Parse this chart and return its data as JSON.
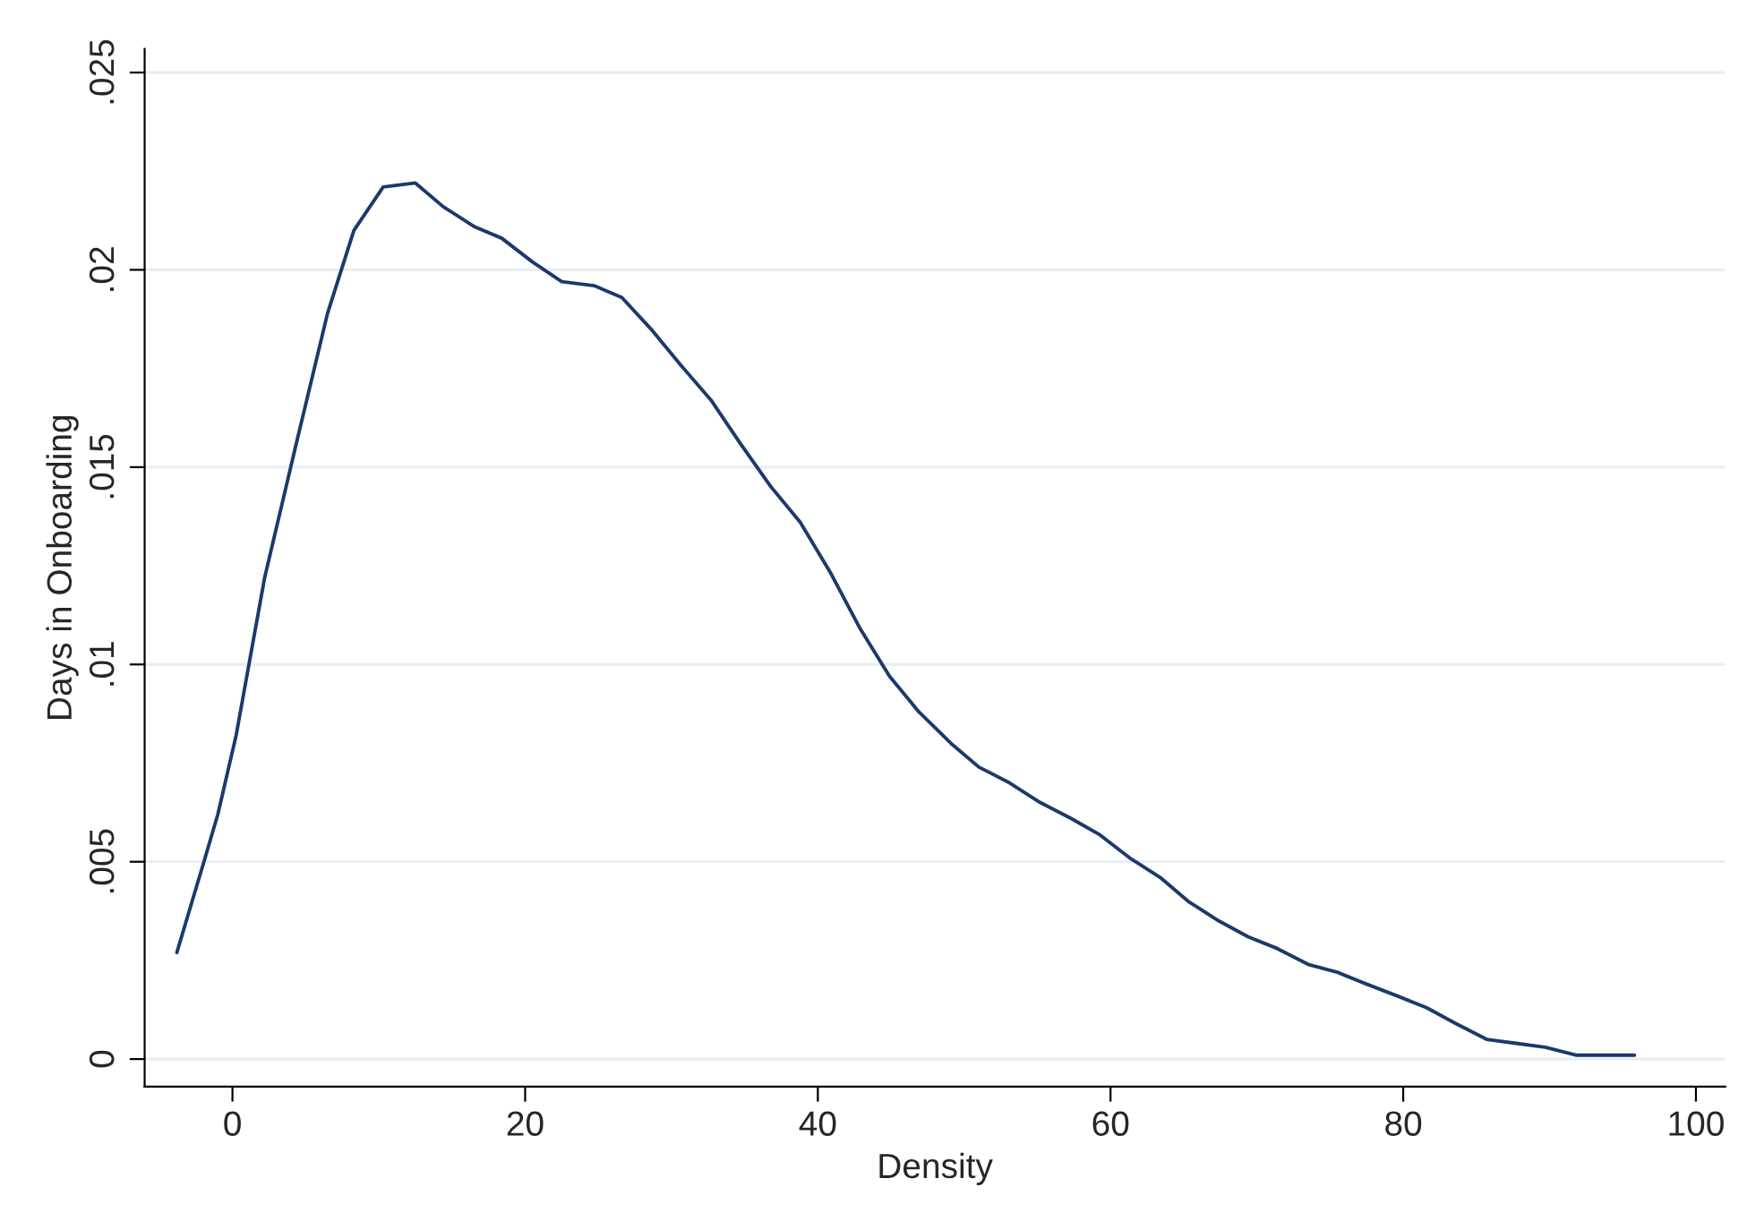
{
  "chart_data": {
    "type": "line",
    "xlabel": "Density",
    "ylabel": "Days in Onboarding",
    "series": [
      {
        "color": "#1a3a6b",
        "x": [
          -3.8,
          -1.95,
          -1.0,
          0.25,
          2.2,
          4.3,
          6.5,
          8.3,
          10.3,
          12.5,
          14.4,
          16.5,
          18.4,
          20.5,
          22.5,
          24.7,
          26.6,
          28.6,
          30.6,
          32.7,
          34.7,
          36.8,
          38.8,
          40.9,
          42.9,
          44.9,
          46.9,
          49.1,
          51.0,
          53.1,
          55.2,
          57.3,
          59.2,
          61.3,
          63.4,
          65.3,
          67.4,
          69.4,
          71.4,
          73.5,
          75.5,
          77.5,
          79.6,
          81.6,
          83.6,
          85.7,
          87.7,
          89.7,
          91.8,
          93.8,
          95.8
        ],
        "values": [
          0.0027,
          0.005,
          0.0062,
          0.0082,
          0.0122,
          0.0155,
          0.0189,
          0.021,
          0.0221,
          0.0222,
          0.0216,
          0.0211,
          0.0208,
          0.0202,
          0.0197,
          0.0196,
          0.0193,
          0.0185,
          0.0176,
          0.0167,
          0.0156,
          0.0145,
          0.0136,
          0.0123,
          0.0109,
          0.0097,
          0.0088,
          0.008,
          0.0074,
          0.007,
          0.0065,
          0.0061,
          0.0057,
          0.0051,
          0.0046,
          0.004,
          0.0035,
          0.0031,
          0.0028,
          0.0024,
          0.0022,
          0.0019,
          0.0016,
          0.0013,
          0.0009,
          0.0005,
          0.0004,
          0.0003,
          0.0001,
          0.0001,
          0.0001
        ]
      }
    ],
    "xlim": [
      -6,
      102
    ],
    "xticks": [
      0,
      20,
      40,
      60,
      80,
      100
    ],
    "ylim": [
      -0.0007,
      0.0256
    ],
    "yticks": [
      {
        "value": 0,
        "label": "0"
      },
      {
        "value": 0.005,
        "label": ".005"
      },
      {
        "value": 0.01,
        "label": ".01"
      },
      {
        "value": 0.015,
        "label": ".015"
      },
      {
        "value": 0.02,
        "label": ".02"
      },
      {
        "value": 0.025,
        "label": ".025"
      }
    ],
    "grid": "y",
    "line_style": "solid",
    "marker": "none",
    "legend": false
  }
}
